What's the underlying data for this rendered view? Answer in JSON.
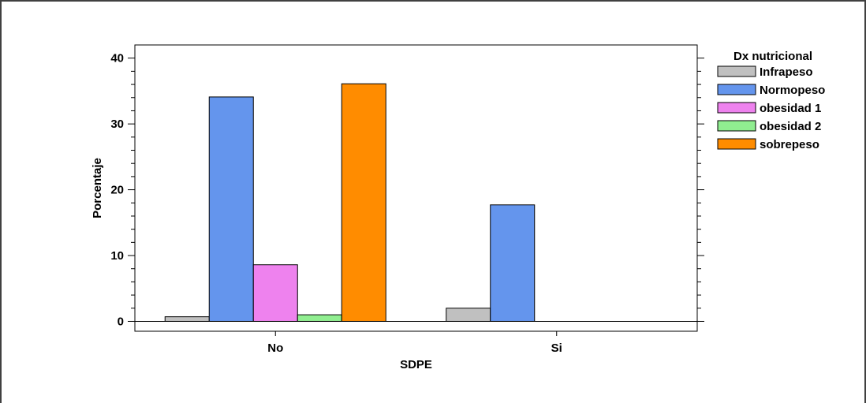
{
  "chart_data": {
    "type": "bar",
    "title": "",
    "xlabel": "SDPE",
    "ylabel": "Porcentaje",
    "categories": [
      "No",
      "Si"
    ],
    "ylim": [
      -1.5,
      42
    ],
    "yticks": [
      0,
      10,
      20,
      30,
      40
    ],
    "grid": false,
    "legend": {
      "title": "Dx nutricional",
      "placement": "right"
    },
    "series": [
      {
        "name": "Infrapeso",
        "color": "#c0c0c0",
        "values": [
          0.7,
          2.0
        ]
      },
      {
        "name": "Normopeso",
        "color": "#6495ed",
        "values": [
          34.1,
          17.7
        ]
      },
      {
        "name": "obesidad 1",
        "color": "#ee82ee",
        "values": [
          8.6,
          0
        ]
      },
      {
        "name": "obesidad 2",
        "color": "#90ee90",
        "values": [
          1.0,
          0
        ]
      },
      {
        "name": "sobrepeso",
        "color": "#ff8c00",
        "values": [
          36.1,
          0
        ]
      }
    ]
  }
}
